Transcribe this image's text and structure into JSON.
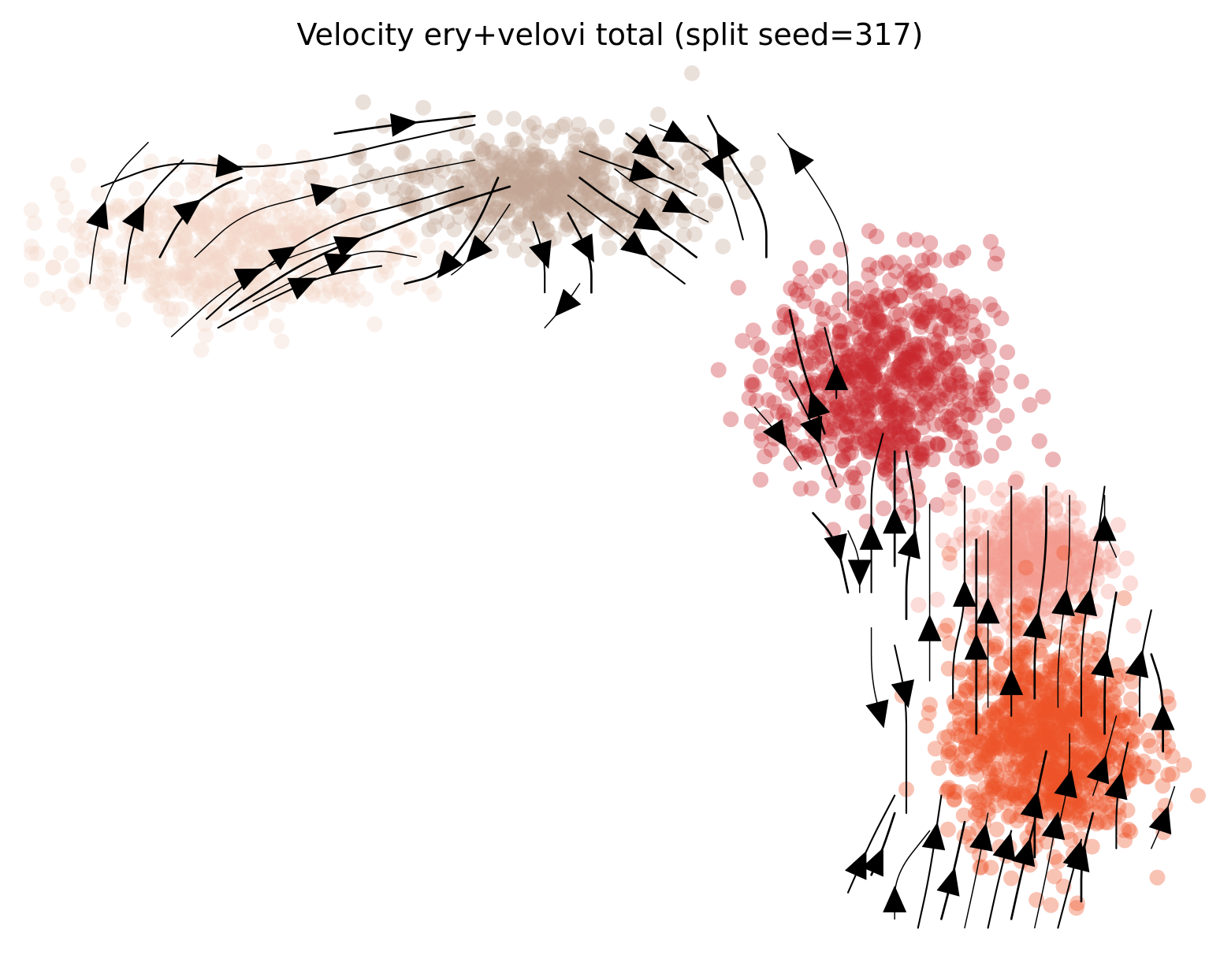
{
  "chart_data": {
    "type": "scatter",
    "subtype": "embedding-streamplot",
    "title": "Velocity ery+velovi total (split seed=317)",
    "xlabel": "",
    "ylabel": "",
    "axes_visible": false,
    "grid": false,
    "legend": "none",
    "xlim": [
      0,
      1
    ],
    "ylim": [
      0,
      1
    ],
    "clusters": [
      {
        "id": "c0",
        "color": "#f3d7c8",
        "center": [
          0.17,
          0.79
        ],
        "spread": [
          0.12,
          0.07
        ],
        "n": 520
      },
      {
        "id": "c1",
        "color": "#c4a595",
        "center": [
          0.44,
          0.86
        ],
        "spread": [
          0.11,
          0.05
        ],
        "n": 520
      },
      {
        "id": "c2",
        "color": "#c9272f",
        "center": [
          0.73,
          0.64
        ],
        "spread": [
          0.08,
          0.11
        ],
        "n": 700
      },
      {
        "id": "c3",
        "color": "#f39a8e",
        "center": [
          0.86,
          0.44
        ],
        "spread": [
          0.05,
          0.06
        ],
        "n": 400
      },
      {
        "id": "c4",
        "color": "#ee5428",
        "center": [
          0.87,
          0.23
        ],
        "spread": [
          0.07,
          0.1
        ],
        "n": 900
      }
    ],
    "streamlines": [
      {
        "points": [
          [
            0.05,
            0.75
          ],
          [
            0.055,
            0.81
          ],
          [
            0.07,
            0.87
          ],
          [
            0.1,
            0.91
          ]
        ],
        "arrow_at": 0.45
      },
      {
        "points": [
          [
            0.08,
            0.75
          ],
          [
            0.085,
            0.81
          ],
          [
            0.1,
            0.85
          ],
          [
            0.13,
            0.89
          ]
        ],
        "arrow_at": 0.5
      },
      {
        "points": [
          [
            0.11,
            0.78
          ],
          [
            0.13,
            0.83
          ],
          [
            0.16,
            0.86
          ],
          [
            0.18,
            0.87
          ]
        ],
        "arrow_at": 0.5
      },
      {
        "points": [
          [
            0.12,
            0.69
          ],
          [
            0.17,
            0.75
          ],
          [
            0.22,
            0.78
          ],
          [
            0.27,
            0.8
          ]
        ],
        "arrow_at": 0.5
      },
      {
        "points": [
          [
            0.15,
            0.71
          ],
          [
            0.2,
            0.77
          ],
          [
            0.26,
            0.82
          ],
          [
            0.32,
            0.84
          ],
          [
            0.37,
            0.86
          ]
        ],
        "arrow_at": 0.35
      },
      {
        "points": [
          [
            0.17,
            0.72
          ],
          [
            0.24,
            0.78
          ],
          [
            0.3,
            0.81
          ],
          [
            0.36,
            0.84
          ],
          [
            0.41,
            0.86
          ]
        ],
        "arrow_at": 0.45
      },
      {
        "points": [
          [
            0.14,
            0.78
          ],
          [
            0.18,
            0.83
          ],
          [
            0.24,
            0.85
          ],
          [
            0.3,
            0.87
          ],
          [
            0.38,
            0.89
          ]
        ],
        "arrow_at": 0.5
      },
      {
        "points": [
          [
            0.06,
            0.86
          ],
          [
            0.12,
            0.89
          ],
          [
            0.18,
            0.88
          ],
          [
            0.25,
            0.89
          ],
          [
            0.31,
            0.91
          ],
          [
            0.38,
            0.93
          ]
        ],
        "arrow_at": 0.35
      },
      {
        "points": [
          [
            0.26,
            0.92
          ],
          [
            0.31,
            0.93
          ],
          [
            0.38,
            0.94
          ]
        ],
        "arrow_at": 0.5
      },
      {
        "points": [
          [
            0.19,
            0.73
          ],
          [
            0.25,
            0.77
          ],
          [
            0.29,
            0.79
          ],
          [
            0.33,
            0.78
          ]
        ],
        "arrow_at": 0.55
      },
      {
        "points": [
          [
            0.16,
            0.7
          ],
          [
            0.2,
            0.73
          ],
          [
            0.25,
            0.76
          ],
          [
            0.3,
            0.77
          ]
        ],
        "arrow_at": 0.55
      },
      {
        "points": [
          [
            0.4,
            0.87
          ],
          [
            0.38,
            0.81
          ],
          [
            0.35,
            0.76
          ],
          [
            0.32,
            0.75
          ]
        ],
        "arrow_at": 0.7
      },
      {
        "points": [
          [
            0.41,
            0.84
          ],
          [
            0.39,
            0.8
          ],
          [
            0.37,
            0.77
          ],
          [
            0.36,
            0.76
          ]
        ],
        "arrow_at": 0.65
      },
      {
        "points": [
          [
            0.43,
            0.82
          ],
          [
            0.44,
            0.78
          ],
          [
            0.44,
            0.74
          ]
        ],
        "arrow_at": 0.5
      },
      {
        "points": [
          [
            0.46,
            0.83
          ],
          [
            0.48,
            0.78
          ],
          [
            0.48,
            0.74
          ]
        ],
        "arrow_at": 0.5
      },
      {
        "points": [
          [
            0.47,
            0.75
          ],
          [
            0.46,
            0.73
          ],
          [
            0.44,
            0.7
          ]
        ],
        "arrow_at": 0.5
      },
      {
        "points": [
          [
            0.46,
            0.85
          ],
          [
            0.49,
            0.82
          ],
          [
            0.53,
            0.78
          ],
          [
            0.56,
            0.75
          ]
        ],
        "arrow_at": 0.6
      },
      {
        "points": [
          [
            0.47,
            0.87
          ],
          [
            0.5,
            0.84
          ],
          [
            0.54,
            0.81
          ],
          [
            0.57,
            0.78
          ]
        ],
        "arrow_at": 0.6
      },
      {
        "points": [
          [
            0.5,
            0.88
          ],
          [
            0.52,
            0.86
          ],
          [
            0.55,
            0.84
          ],
          [
            0.58,
            0.82
          ]
        ],
        "arrow_at": 0.7
      },
      {
        "points": [
          [
            0.47,
            0.9
          ],
          [
            0.51,
            0.88
          ],
          [
            0.54,
            0.87
          ],
          [
            0.57,
            0.85
          ]
        ],
        "arrow_at": 0.55
      },
      {
        "points": [
          [
            0.51,
            0.92
          ],
          [
            0.53,
            0.9
          ],
          [
            0.55,
            0.88
          ]
        ],
        "arrow_at": 0.5
      },
      {
        "points": [
          [
            0.53,
            0.93
          ],
          [
            0.55,
            0.92
          ],
          [
            0.58,
            0.9
          ]
        ],
        "arrow_at": 0.5
      },
      {
        "points": [
          [
            0.55,
            0.92
          ],
          [
            0.58,
            0.9
          ],
          [
            0.6,
            0.85
          ],
          [
            0.61,
            0.8
          ]
        ],
        "arrow_at": 0.45
      },
      {
        "points": [
          [
            0.63,
            0.78
          ],
          [
            0.63,
            0.83
          ],
          [
            0.6,
            0.89
          ],
          [
            0.58,
            0.94
          ]
        ],
        "arrow_at": 0.8
      },
      {
        "points": [
          [
            0.7,
            0.72
          ],
          [
            0.7,
            0.8
          ],
          [
            0.67,
            0.87
          ],
          [
            0.64,
            0.92
          ]
        ],
        "arrow_at": 0.85
      },
      {
        "points": [
          [
            0.69,
            0.62
          ],
          [
            0.69,
            0.65
          ],
          [
            0.68,
            0.7
          ]
        ],
        "arrow_at": 0.3
      },
      {
        "points": [
          [
            0.68,
            0.58
          ],
          [
            0.67,
            0.62
          ],
          [
            0.66,
            0.66
          ],
          [
            0.65,
            0.72
          ]
        ],
        "arrow_at": 0.25
      },
      {
        "points": [
          [
            0.62,
            0.61
          ],
          [
            0.64,
            0.58
          ],
          [
            0.66,
            0.54
          ]
        ],
        "arrow_at": 0.5
      },
      {
        "points": [
          [
            0.65,
            0.64
          ],
          [
            0.67,
            0.59
          ],
          [
            0.69,
            0.52
          ]
        ],
        "arrow_at": 0.5
      },
      {
        "points": [
          [
            0.67,
            0.49
          ],
          [
            0.69,
            0.46
          ],
          [
            0.7,
            0.4
          ]
        ],
        "arrow_at": 0.5
      },
      {
        "points": [
          [
            0.7,
            0.47
          ],
          [
            0.71,
            0.44
          ],
          [
            0.71,
            0.4
          ]
        ],
        "arrow_at": 0.7
      },
      {
        "points": [
          [
            0.72,
            0.4
          ],
          [
            0.72,
            0.47
          ],
          [
            0.72,
            0.53
          ],
          [
            0.73,
            0.58
          ]
        ],
        "arrow_at": 0.35
      },
      {
        "points": [
          [
            0.74,
            0.43
          ],
          [
            0.74,
            0.5
          ],
          [
            0.74,
            0.56
          ]
        ],
        "arrow_at": 0.4
      },
      {
        "points": [
          [
            0.72,
            0.36
          ],
          [
            0.72,
            0.3
          ],
          [
            0.73,
            0.25
          ]
        ],
        "arrow_at": 0.9
      },
      {
        "points": [
          [
            0.74,
            0.34
          ],
          [
            0.75,
            0.28
          ],
          [
            0.75,
            0.22
          ],
          [
            0.75,
            0.15
          ]
        ],
        "arrow_at": 0.3
      },
      {
        "points": [
          [
            0.75,
            0.37
          ],
          [
            0.75,
            0.43
          ],
          [
            0.76,
            0.48
          ],
          [
            0.75,
            0.56
          ]
        ],
        "arrow_at": 0.45
      },
      {
        "points": [
          [
            0.77,
            0.3
          ],
          [
            0.77,
            0.36
          ],
          [
            0.77,
            0.42
          ],
          [
            0.77,
            0.5
          ]
        ],
        "arrow_at": 0.3
      },
      {
        "points": [
          [
            0.79,
            0.28
          ],
          [
            0.79,
            0.33
          ],
          [
            0.8,
            0.38
          ],
          [
            0.8,
            0.44
          ],
          [
            0.8,
            0.52
          ]
        ],
        "arrow_at": 0.5
      },
      {
        "points": [
          [
            0.81,
            0.24
          ],
          [
            0.81,
            0.31
          ],
          [
            0.81,
            0.38
          ],
          [
            0.81,
            0.46
          ]
        ],
        "arrow_at": 0.45
      },
      {
        "points": [
          [
            0.82,
            0.27
          ],
          [
            0.82,
            0.33
          ],
          [
            0.82,
            0.4
          ],
          [
            0.82,
            0.47
          ]
        ],
        "arrow_at": 0.55
      },
      {
        "points": [
          [
            0.84,
            0.26
          ],
          [
            0.84,
            0.31
          ],
          [
            0.84,
            0.4
          ],
          [
            0.84,
            0.52
          ]
        ],
        "arrow_at": 0.15
      },
      {
        "points": [
          [
            0.86,
            0.28
          ],
          [
            0.86,
            0.35
          ],
          [
            0.87,
            0.44
          ],
          [
            0.87,
            0.52
          ]
        ],
        "arrow_at": 0.35
      },
      {
        "points": [
          [
            0.88,
            0.27
          ],
          [
            0.88,
            0.33
          ],
          [
            0.89,
            0.43
          ],
          [
            0.89,
            0.51
          ]
        ],
        "arrow_at": 0.5
      },
      {
        "points": [
          [
            0.9,
            0.26
          ],
          [
            0.9,
            0.35
          ],
          [
            0.91,
            0.42
          ],
          [
            0.92,
            0.52
          ]
        ],
        "arrow_at": 0.5
      },
      {
        "points": [
          [
            0.92,
            0.24
          ],
          [
            0.92,
            0.32
          ],
          [
            0.93,
            0.4
          ]
        ],
        "arrow_at": 0.5
      },
      {
        "points": [
          [
            0.93,
            0.44
          ],
          [
            0.92,
            0.47
          ],
          [
            0.92,
            0.51
          ]
        ],
        "arrow_at": 0.5
      },
      {
        "points": [
          [
            0.95,
            0.26
          ],
          [
            0.95,
            0.32
          ],
          [
            0.96,
            0.38
          ]
        ],
        "arrow_at": 0.5
      },
      {
        "points": [
          [
            0.97,
            0.22
          ],
          [
            0.97,
            0.29
          ],
          [
            0.96,
            0.33
          ]
        ],
        "arrow_at": 0.35
      },
      {
        "points": [
          [
            0.96,
            0.11
          ],
          [
            0.97,
            0.14
          ],
          [
            0.98,
            0.18
          ]
        ],
        "arrow_at": 0.5
      },
      {
        "points": [
          [
            0.7,
            0.06
          ],
          [
            0.72,
            0.12
          ],
          [
            0.74,
            0.17
          ]
        ],
        "arrow_at": 0.3
      },
      {
        "points": [
          [
            0.72,
            0.08
          ],
          [
            0.73,
            0.11
          ],
          [
            0.74,
            0.15
          ]
        ],
        "arrow_at": 0.25
      },
      {
        "points": [
          [
            0.74,
            0.03
          ],
          [
            0.74,
            0.08
          ],
          [
            0.77,
            0.13
          ]
        ],
        "arrow_at": 0.2
      },
      {
        "points": [
          [
            0.76,
            0.02
          ],
          [
            0.77,
            0.08
          ],
          [
            0.78,
            0.17
          ]
        ],
        "arrow_at": 0.7
      },
      {
        "points": [
          [
            0.78,
            0.03
          ],
          [
            0.79,
            0.08
          ],
          [
            0.8,
            0.14
          ]
        ],
        "arrow_at": 0.4
      },
      {
        "points": [
          [
            0.8,
            0.02
          ],
          [
            0.81,
            0.08
          ],
          [
            0.82,
            0.15
          ]
        ],
        "arrow_at": 0.8
      },
      {
        "points": [
          [
            0.82,
            0.02
          ],
          [
            0.83,
            0.08
          ],
          [
            0.84,
            0.13
          ]
        ],
        "arrow_at": 0.85
      },
      {
        "points": [
          [
            0.84,
            0.03
          ],
          [
            0.85,
            0.09
          ],
          [
            0.86,
            0.14
          ]
        ],
        "arrow_at": 0.7
      },
      {
        "points": [
          [
            0.86,
            0.02
          ],
          [
            0.87,
            0.08
          ],
          [
            0.88,
            0.15
          ]
        ],
        "arrow_at": 0.9
      },
      {
        "points": [
          [
            0.88,
            0.02
          ],
          [
            0.89,
            0.07
          ],
          [
            0.9,
            0.12
          ]
        ],
        "arrow_at": 0.85
      },
      {
        "points": [
          [
            0.9,
            0.05
          ],
          [
            0.9,
            0.1
          ],
          [
            0.91,
            0.15
          ]
        ],
        "arrow_at": 0.5
      },
      {
        "points": [
          [
            0.91,
            0.17
          ],
          [
            0.92,
            0.21
          ],
          [
            0.93,
            0.26
          ]
        ],
        "arrow_at": 0.35
      },
      {
        "points": [
          [
            0.93,
            0.11
          ],
          [
            0.93,
            0.17
          ],
          [
            0.94,
            0.23
          ]
        ],
        "arrow_at": 0.6
      },
      {
        "points": [
          [
            0.86,
            0.1
          ],
          [
            0.86,
            0.16
          ],
          [
            0.87,
            0.22
          ]
        ],
        "arrow_at": 0.5
      },
      {
        "points": [
          [
            0.88,
            0.13
          ],
          [
            0.89,
            0.19
          ],
          [
            0.89,
            0.24
          ]
        ],
        "arrow_at": 0.5
      }
    ]
  }
}
